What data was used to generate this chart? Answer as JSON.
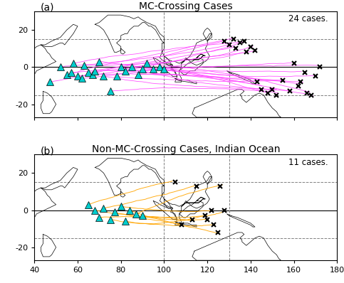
{
  "title_a": "MC-Crossing Cases",
  "title_b": "Non-MC-Crossing Cases, Indian Ocean",
  "label_a": "(a)",
  "label_b": "(b)",
  "cases_a": "24 cases.",
  "cases_b": "11 cases.",
  "line_color_a": "#FF44FF",
  "line_color_b": "#FFA500",
  "triangle_color": "#00CCCC",
  "xlim": [
    40,
    180
  ],
  "ylim": [
    -27,
    30
  ],
  "xticks": [
    40,
    60,
    80,
    100,
    120,
    140,
    160,
    180
  ],
  "yticks": [
    -20,
    0,
    20
  ],
  "dashed_lat": [
    -15,
    15
  ],
  "dashed_lon": [
    100,
    130
  ],
  "mc_crossing_starts": [
    [
      47,
      -8
    ],
    [
      52,
      0
    ],
    [
      55,
      -4
    ],
    [
      57,
      -3
    ],
    [
      58,
      2
    ],
    [
      60,
      -5
    ],
    [
      62,
      -6
    ],
    [
      63,
      1
    ],
    [
      65,
      -3
    ],
    [
      67,
      -4
    ],
    [
      68,
      -2
    ],
    [
      70,
      3
    ],
    [
      72,
      -5
    ],
    [
      75,
      -13
    ],
    [
      78,
      -5
    ],
    [
      80,
      0
    ],
    [
      82,
      -2
    ],
    [
      85,
      0
    ],
    [
      88,
      -4
    ],
    [
      90,
      -1
    ],
    [
      92,
      2
    ],
    [
      95,
      -1
    ],
    [
      98,
      0
    ],
    [
      100,
      -1
    ]
  ],
  "mc_crossing_ends": [
    [
      128,
      14
    ],
    [
      130,
      12
    ],
    [
      132,
      15
    ],
    [
      133,
      10
    ],
    [
      135,
      13
    ],
    [
      137,
      14
    ],
    [
      138,
      8
    ],
    [
      140,
      11
    ],
    [
      142,
      9
    ],
    [
      143,
      -8
    ],
    [
      145,
      -12
    ],
    [
      148,
      -14
    ],
    [
      150,
      -12
    ],
    [
      152,
      -15
    ],
    [
      155,
      -7
    ],
    [
      158,
      -13
    ],
    [
      160,
      2
    ],
    [
      162,
      -10
    ],
    [
      163,
      -8
    ],
    [
      165,
      -3
    ],
    [
      166,
      -14
    ],
    [
      168,
      -15
    ],
    [
      170,
      -5
    ],
    [
      172,
      0
    ]
  ],
  "non_mc_crossing_starts": [
    [
      65,
      3
    ],
    [
      68,
      0
    ],
    [
      70,
      -4
    ],
    [
      72,
      1
    ],
    [
      75,
      -5
    ],
    [
      77,
      -1
    ],
    [
      80,
      2
    ],
    [
      82,
      -6
    ],
    [
      84,
      0
    ],
    [
      87,
      -2
    ],
    [
      90,
      -3
    ]
  ],
  "non_mc_crossing_ends": [
    [
      105,
      15
    ],
    [
      108,
      -8
    ],
    [
      113,
      -5
    ],
    [
      115,
      13
    ],
    [
      119,
      -3
    ],
    [
      120,
      -5
    ],
    [
      122,
      0
    ],
    [
      123,
      -8
    ],
    [
      125,
      -12
    ],
    [
      126,
      13
    ],
    [
      128,
      0
    ]
  ]
}
